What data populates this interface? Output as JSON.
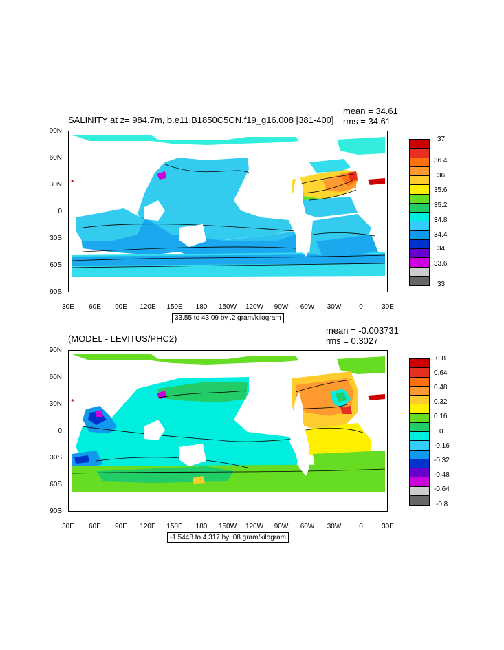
{
  "panels": [
    {
      "title": "SALINITY at z= 984.7m, b.e11.B1850C5CN.f19_g16.008 [381-400]",
      "mean": "mean = 34.61",
      "rms": "rms = 34.61",
      "contour_info": "33.55 to 43.09 by .2 gram/kilogram",
      "y_ticks": [
        "90N",
        "60N",
        "30N",
        "0",
        "30S",
        "60S",
        "90S"
      ],
      "x_ticks": [
        "30E",
        "60E",
        "90E",
        "120E",
        "150E",
        "180",
        "150W",
        "120W",
        "90W",
        "60W",
        "30W",
        "0",
        "30E"
      ],
      "colorbar": {
        "labels": [
          "37",
          "36.4",
          "36",
          "35.6",
          "35.2",
          "34.8",
          "34.4",
          "34",
          "33.6",
          "33"
        ],
        "colors": [
          "#cc0000",
          "#e83020",
          "#ff7010",
          "#ff9a30",
          "#ffcc30",
          "#fff000",
          "#66dd22",
          "#22cc66",
          "#00eedd",
          "#33ccff",
          "#1199ee",
          "#0033cc",
          "#6600cc",
          "#cc00dd",
          "#cccccc",
          "#666666"
        ]
      }
    },
    {
      "title": "(MODEL - LEVITUS/PHC2)",
      "mean": "mean = -0.003731",
      "rms": "rms = 0.3027",
      "contour_info": "-1.5448 to 4.317 by .08 gram/kilogram",
      "y_ticks": [
        "90N",
        "60N",
        "30N",
        "0",
        "30S",
        "60S",
        "90S"
      ],
      "x_ticks": [
        "30E",
        "60E",
        "90E",
        "120E",
        "150E",
        "180",
        "150W",
        "120W",
        "90W",
        "60W",
        "30W",
        "0",
        "30E"
      ],
      "colorbar": {
        "labels": [
          "0.8",
          "0.64",
          "0.48",
          "0.32",
          "0.16",
          "0",
          "-0.16",
          "-0.32",
          "-0.48",
          "-0.64",
          "-0.8"
        ],
        "colors": [
          "#cc0000",
          "#e83020",
          "#ff7010",
          "#ff9a30",
          "#ffcc30",
          "#fff000",
          "#66dd22",
          "#22cc66",
          "#00eedd",
          "#33ccff",
          "#1199ee",
          "#0033cc",
          "#6600cc",
          "#cc00dd",
          "#cccccc",
          "#666666"
        ]
      }
    }
  ]
}
